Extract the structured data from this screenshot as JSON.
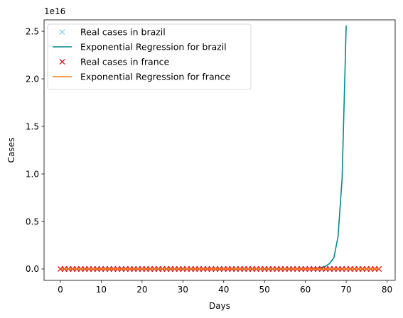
{
  "chart_data": {
    "type": "line",
    "title": "",
    "xlabel": "Days",
    "ylabel": "Cases",
    "y_offset_label": "1e16",
    "xlim": [
      -4,
      82
    ],
    "ylim": [
      -0.12,
      2.62
    ],
    "y_unit_multiplier": 1e+16,
    "xticks": [
      0,
      10,
      20,
      30,
      40,
      50,
      60,
      70,
      80
    ],
    "yticks": [
      0.0,
      0.5,
      1.0,
      1.5,
      2.0,
      2.5
    ],
    "ytick_labels": [
      "0.0",
      "0.5",
      "1.0",
      "1.5",
      "2.0",
      "2.5"
    ],
    "grid": false,
    "legend_position": "top-left",
    "series": [
      {
        "name": "Real cases in brazil",
        "kind": "marker-x",
        "color": "#87ceeb",
        "x": [
          1,
          2,
          3,
          4,
          5,
          6,
          7,
          8,
          9,
          10,
          11,
          12,
          13,
          14,
          15,
          16,
          17,
          18,
          19,
          20,
          21,
          22,
          23,
          24,
          25,
          26,
          27,
          28,
          29,
          30,
          31,
          32,
          33,
          34,
          35,
          36,
          37,
          38,
          39,
          40,
          41,
          42,
          43,
          44,
          45,
          46,
          47,
          48,
          49,
          50,
          51,
          52,
          53,
          54,
          55,
          56,
          57,
          58,
          59,
          60,
          61,
          62,
          63,
          64,
          65,
          66,
          67,
          68,
          69,
          70
        ],
        "y": [
          0,
          0,
          0,
          0,
          0,
          0,
          0,
          0,
          0,
          0,
          0,
          0,
          0,
          0,
          0,
          0,
          0,
          0,
          0,
          0,
          0,
          0,
          0,
          0,
          0,
          0,
          0,
          0,
          0,
          0,
          0,
          0,
          0,
          0,
          0,
          0,
          0,
          0,
          0,
          0,
          0,
          0,
          0,
          0,
          0,
          0,
          0,
          0,
          0,
          0,
          0,
          0,
          0,
          0,
          0,
          0,
          0,
          0,
          0,
          0,
          0,
          0,
          0,
          0,
          0,
          0,
          0,
          0,
          0,
          0
        ]
      },
      {
        "name": "Exponential Regression for brazil",
        "kind": "line",
        "color": "#008b8b",
        "x": [
          0,
          10,
          20,
          30,
          40,
          50,
          55,
          60,
          62,
          63,
          64,
          65,
          66,
          67,
          68,
          69,
          70
        ],
        "y": [
          0,
          0,
          0,
          0,
          0,
          0,
          0,
          0.002,
          0.005,
          0.008,
          0.015,
          0.03,
          0.06,
          0.12,
          0.34,
          0.95,
          2.56
        ]
      },
      {
        "name": "Real cases in france",
        "kind": "marker-x",
        "color": "#e00000",
        "x": [
          0,
          1,
          2,
          3,
          4,
          5,
          6,
          7,
          8,
          9,
          10,
          11,
          12,
          13,
          14,
          15,
          16,
          17,
          18,
          19,
          20,
          21,
          22,
          23,
          24,
          25,
          26,
          27,
          28,
          29,
          30,
          31,
          32,
          33,
          34,
          35,
          36,
          37,
          38,
          39,
          40,
          41,
          42,
          43,
          44,
          45,
          46,
          47,
          48,
          49,
          50,
          51,
          52,
          53,
          54,
          55,
          56,
          57,
          58,
          59,
          60,
          61,
          62,
          63,
          64,
          65,
          66,
          67,
          68,
          69,
          70,
          71,
          72,
          73,
          74,
          75,
          76,
          77,
          78
        ],
        "y": [
          0,
          0,
          0,
          0,
          0,
          0,
          0,
          0,
          0,
          0,
          0,
          0,
          0,
          0,
          0,
          0,
          0,
          0,
          0,
          0,
          0,
          0,
          0,
          0,
          0,
          0,
          0,
          0,
          0,
          0,
          0,
          0,
          0,
          0,
          0,
          0,
          0,
          0,
          0,
          0,
          0,
          0,
          0,
          0,
          0,
          0,
          0,
          0,
          0,
          0,
          0,
          0,
          0,
          0,
          0,
          0,
          0,
          0,
          0,
          0,
          0,
          0,
          0,
          0,
          0,
          0,
          0,
          0,
          0,
          0,
          0,
          0,
          0,
          0,
          0,
          0,
          0,
          0,
          0
        ]
      },
      {
        "name": "Exponential Regression for france",
        "kind": "line",
        "color": "#ff7f0e",
        "x": [
          0,
          78
        ],
        "y": [
          0,
          0
        ]
      }
    ]
  }
}
